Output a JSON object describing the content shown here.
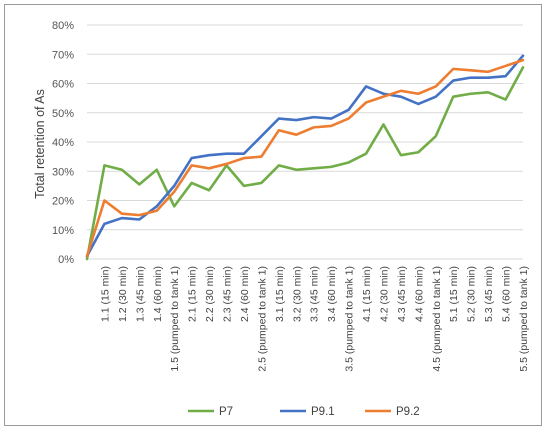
{
  "chart_data": {
    "type": "line",
    "title": "",
    "xlabel": "",
    "ylabel": "Total retention of As",
    "ylim": [
      0,
      80
    ],
    "yticks": [
      "0%",
      "10%",
      "20%",
      "30%",
      "40%",
      "50%",
      "60%",
      "70%",
      "80%"
    ],
    "grid": "horizontal",
    "legend_position": "bottom",
    "categories": [
      "",
      "1.1 (15 min)",
      "1.2 (30 min)",
      "1.3 (45 min)",
      "1.4 (60 min)",
      "1.5 (pumped to tank 1)",
      "2.1 (15 min)",
      "2.2 (30 min)",
      "2.3 (45 min)",
      "2.4 (60 min)",
      "2.5 (pumped to tank 1)",
      "3.1 (15 min)",
      "3.2 (30 min)",
      "3.3 (45 min)",
      "3.4 (60 min)",
      "3.5 (pumped to tank 1)",
      "4.1 (15 min)",
      "4.2 (30 min)",
      "4.3 (45 min)",
      "4.4 (60 min)",
      "4.5 (pumped to tank 1)",
      "5.1 (15 min)",
      "5.2 (30 min)",
      "5.3 (45 min)",
      "5.4 (60 min)",
      "5.5 (pumped to tank 1)"
    ],
    "series": [
      {
        "name": "P7",
        "color": "#70ad47",
        "values": [
          0,
          32,
          30.5,
          25.5,
          30.5,
          18,
          26,
          23.5,
          32,
          25,
          26,
          32,
          30.5,
          31,
          31.5,
          33,
          36,
          46,
          35.5,
          36.5,
          42,
          55.5,
          56.5,
          57,
          54.5,
          65.5
        ]
      },
      {
        "name": "P9.1",
        "color": "#4472c4",
        "values": [
          1,
          12,
          14,
          13.5,
          18,
          25,
          34.5,
          35.5,
          36,
          36,
          42,
          48,
          47.5,
          48.5,
          48,
          51,
          59,
          56.5,
          55.5,
          53,
          55.5,
          61,
          62,
          62,
          62.5,
          69.5
        ]
      },
      {
        "name": "P9.2",
        "color": "#ed7d31",
        "values": [
          1,
          20,
          15.5,
          15,
          16.5,
          23,
          32,
          31,
          32.5,
          34.5,
          35,
          44,
          42.5,
          45,
          45.5,
          48,
          53.5,
          55.5,
          57.5,
          56.5,
          59,
          65,
          64.5,
          64,
          66,
          68
        ]
      }
    ]
  }
}
